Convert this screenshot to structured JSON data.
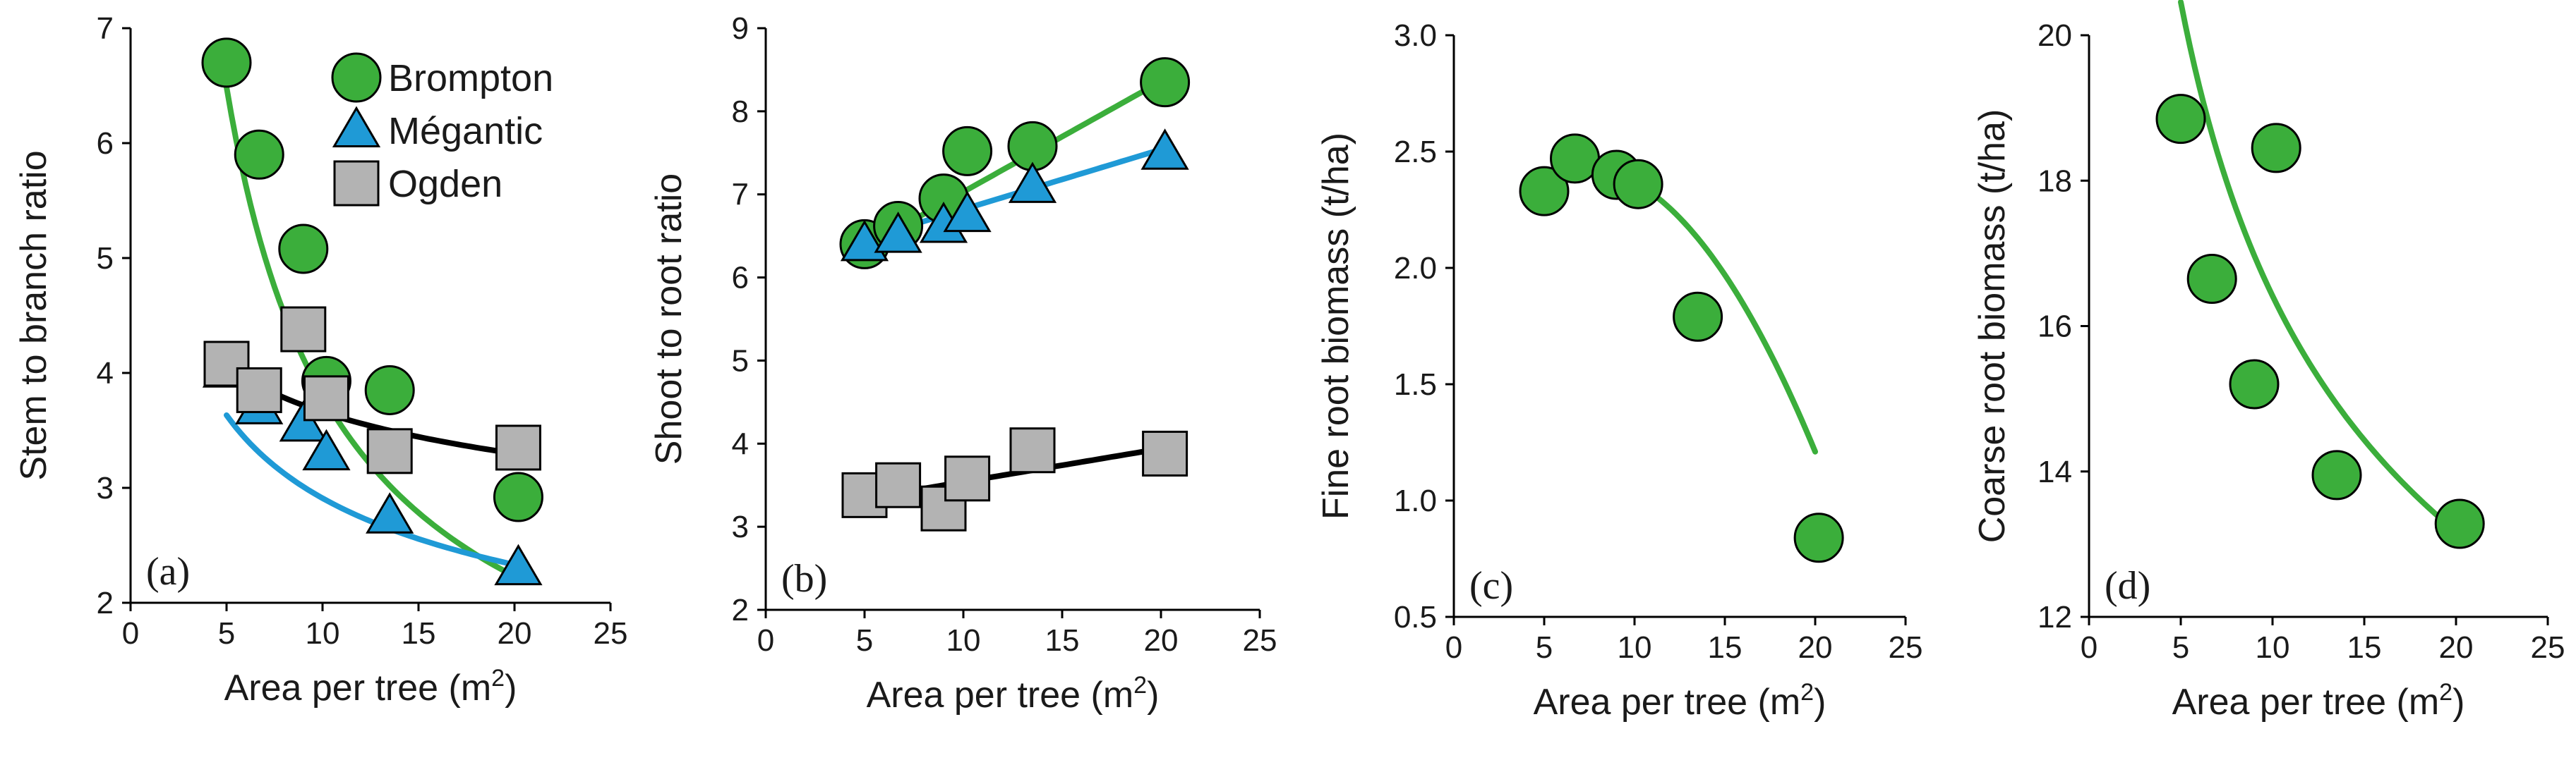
{
  "colors": {
    "Brompton": "#3bae3b",
    "Mégantic": "#1f9ad6",
    "Ogden": "#b3b3b3",
    "fit_Ogden": "#000000"
  },
  "chart_data": [
    {
      "type": "scatter",
      "panel": "(a)",
      "xlabel": "Area per tree (m²)",
      "xlabel_main": "Area per tree (m",
      "xlabel_sup": "2",
      "xlabel_close": ")",
      "ylabel": "Stem to branch ratio",
      "xlim": [
        0,
        25
      ],
      "ylim": [
        2,
        7
      ],
      "xticks": [
        0,
        5,
        10,
        15,
        20,
        25
      ],
      "yticks": [
        2,
        3,
        4,
        5,
        6,
        7
      ],
      "legend": {
        "position": "top-right",
        "entries": [
          "Brompton",
          "Mégantic",
          "Ogden"
        ]
      },
      "series": [
        {
          "name": "Brompton",
          "marker": "circle",
          "x": [
            5,
            6.7,
            9,
            10.2,
            13.5,
            20.2
          ],
          "y": [
            6.7,
            5.9,
            5.08,
            3.93,
            3.85,
            2.92
          ],
          "fit": {
            "type": "power",
            "a": 22.4,
            "b": -0.77,
            "x_range": [
              5,
              20
            ]
          }
        },
        {
          "name": "Mégantic",
          "marker": "triangle",
          "x": [
            5,
            6.7,
            9,
            10.2,
            13.5,
            20.2
          ],
          "y": [
            4.02,
            3.7,
            3.55,
            3.3,
            2.75,
            2.3
          ],
          "fit": {
            "type": "power",
            "a": 6.08,
            "b": -0.32,
            "x_range": [
              5,
              20
            ]
          }
        },
        {
          "name": "Ogden",
          "marker": "square",
          "x": [
            5,
            6.7,
            9,
            10.2,
            13.5,
            20.2
          ],
          "y": [
            4.08,
            3.85,
            4.38,
            3.78,
            3.32,
            3.35
          ],
          "fit": {
            "type": "power",
            "a": 5.17,
            "b": -0.15,
            "x_range": [
              5,
              20
            ]
          }
        }
      ]
    },
    {
      "type": "scatter",
      "panel": "(b)",
      "xlabel": "Area per tree (m²)",
      "xlabel_main": "Area per tree (m",
      "xlabel_sup": "2",
      "xlabel_close": ")",
      "ylabel": "Shoot to root ratio",
      "xlim": [
        0,
        25
      ],
      "ylim": [
        2,
        9
      ],
      "xticks": [
        0,
        5,
        10,
        15,
        20,
        25
      ],
      "yticks": [
        2,
        3,
        4,
        5,
        6,
        7,
        8,
        9
      ],
      "series": [
        {
          "name": "Brompton",
          "marker": "circle",
          "x": [
            5,
            6.7,
            9,
            10.2,
            13.5,
            20.2
          ],
          "y": [
            6.4,
            6.62,
            6.95,
            7.52,
            7.58,
            8.35
          ],
          "fit": {
            "type": "linear",
            "m": 0.133,
            "c": 5.7,
            "x_range": [
              5,
              20
            ]
          }
        },
        {
          "name": "Mégantic",
          "marker": "triangle",
          "x": [
            5,
            6.7,
            9,
            10.2,
            13.5,
            20.2
          ],
          "y": [
            6.4,
            6.5,
            6.62,
            6.75,
            7.1,
            7.5
          ],
          "fit": {
            "type": "linear",
            "m": 0.072,
            "c": 6.1,
            "x_range": [
              5,
              20
            ]
          }
        },
        {
          "name": "Ogden",
          "marker": "square",
          "x": [
            5,
            6.7,
            9,
            10.2,
            13.5,
            20.2
          ],
          "y": [
            3.38,
            3.5,
            3.22,
            3.58,
            3.92,
            3.88
          ],
          "fit": {
            "type": "linear",
            "m": 0.04,
            "c": 3.14,
            "x_range": [
              5,
              20
            ]
          }
        }
      ]
    },
    {
      "type": "scatter",
      "panel": "(c)",
      "xlabel": "Area per tree (m²)",
      "xlabel_main": "Area per tree (m",
      "xlabel_sup": "2",
      "xlabel_close": ")",
      "ylabel": "Fine root biomass (t/ha)",
      "xlim": [
        0,
        25
      ],
      "ylim": [
        0.5,
        3.0
      ],
      "xticks": [
        0,
        5,
        10,
        15,
        20,
        25
      ],
      "yticks": [
        0.5,
        1.0,
        1.5,
        2.0,
        2.5,
        3.0
      ],
      "series": [
        {
          "name": "Brompton",
          "marker": "circle",
          "x": [
            5,
            6.7,
            9,
            10.2,
            13.5,
            20.2
          ],
          "y": [
            2.33,
            2.47,
            2.4,
            2.36,
            1.79,
            0.84
          ],
          "fit": {
            "type": "quadratic",
            "a": -0.0072,
            "b": 0.1,
            "c": 2.09,
            "x_range": [
              5,
              20
            ]
          }
        }
      ]
    },
    {
      "type": "scatter",
      "panel": "(d)",
      "xlabel": "Area per tree (m²)",
      "xlabel_main": "Area per tree (m",
      "xlabel_sup": "2",
      "xlabel_close": ")",
      "ylabel": "Coarse root biomass (t/ha)",
      "xlim": [
        0,
        25
      ],
      "ylim": [
        12,
        20
      ],
      "xticks": [
        0,
        5,
        10,
        15,
        20,
        25
      ],
      "yticks": [
        12,
        14,
        16,
        18,
        20
      ],
      "series": [
        {
          "name": "Brompton",
          "marker": "circle",
          "x": [
            5,
            6.7,
            9,
            10.2,
            13.5,
            20.2
          ],
          "y": [
            18.85,
            16.65,
            15.2,
            18.45,
            13.95,
            13.28
          ],
          "fit": {
            "type": "power",
            "a": 34.1,
            "b": -0.3175,
            "x_range": [
              5,
              20
            ]
          }
        }
      ]
    }
  ]
}
